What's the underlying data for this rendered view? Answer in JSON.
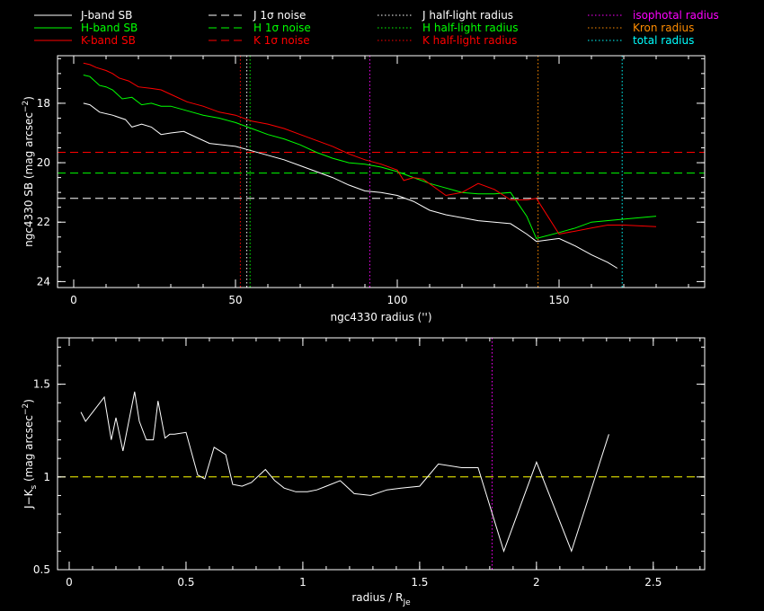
{
  "colors": {
    "J": "#ffffff",
    "H": "#00ff00",
    "K": "#ff0000",
    "iso": "#ff00ff",
    "kron": "#ff8c00",
    "total": "#00ffff",
    "ratio_line": "#ffffff",
    "ratio_ref": "#ffff00"
  },
  "legend": {
    "col1": [
      "J-band SB",
      "H-band SB",
      "K-band SB"
    ],
    "col2": [
      "J 1σ noise",
      "H 1σ noise",
      "K 1σ noise"
    ],
    "col3": [
      "J half-light radius",
      "H half-light radius",
      "K half-light radius"
    ],
    "col4": [
      "isophotal radius",
      "Kron radius",
      "total radius"
    ]
  },
  "chart_data": [
    {
      "type": "line",
      "xlabel": "ngc4330 radius ('')",
      "ylabel": "ngc4330 SB (mag arcsec",
      "ylabel_sup": "−2",
      "ylabel_close": ")",
      "xlim": [
        -5,
        195
      ],
      "ylim": [
        24.2,
        16.4
      ],
      "y_inverted": true,
      "xticks": [
        0,
        50,
        100,
        150
      ],
      "xtick_labels": [
        "0",
        "50",
        "100",
        "150"
      ],
      "yticks": [
        18,
        20,
        22,
        24
      ],
      "ytick_labels": [
        "18",
        "20",
        "22",
        "24"
      ],
      "series": [
        {
          "name": "J-band SB",
          "color": "J",
          "x": [
            3,
            5,
            8,
            12,
            16,
            18,
            21,
            24,
            27,
            30,
            34,
            38,
            42,
            46,
            50,
            55,
            60,
            65,
            70,
            75,
            80,
            85,
            90,
            95,
            100,
            105,
            110,
            115,
            120,
            125,
            130,
            135,
            140,
            143,
            150,
            155,
            160,
            165,
            168
          ],
          "y": [
            18.0,
            18.05,
            18.3,
            18.4,
            18.55,
            18.8,
            18.7,
            18.8,
            19.05,
            19.0,
            18.95,
            19.15,
            19.35,
            19.4,
            19.45,
            19.6,
            19.75,
            19.9,
            20.1,
            20.3,
            20.5,
            20.75,
            20.95,
            21.0,
            21.1,
            21.3,
            21.6,
            21.75,
            21.85,
            21.95,
            22.0,
            22.05,
            22.4,
            22.65,
            22.55,
            22.8,
            23.1,
            23.35,
            23.55
          ]
        },
        {
          "name": "H-band SB",
          "color": "H",
          "x": [
            3,
            5,
            8,
            10,
            12,
            15,
            18,
            21,
            24,
            27,
            30,
            35,
            40,
            45,
            50,
            55,
            60,
            65,
            70,
            75,
            80,
            85,
            90,
            95,
            100,
            105,
            110,
            115,
            120,
            125,
            130,
            135,
            140,
            143,
            150,
            155,
            160,
            170,
            180
          ],
          "y": [
            17.05,
            17.1,
            17.4,
            17.45,
            17.55,
            17.85,
            17.8,
            18.05,
            18.0,
            18.1,
            18.1,
            18.25,
            18.4,
            18.5,
            18.65,
            18.85,
            19.05,
            19.2,
            19.4,
            19.65,
            19.85,
            20.0,
            20.05,
            20.15,
            20.3,
            20.5,
            20.7,
            20.85,
            21.0,
            21.05,
            21.05,
            21.0,
            21.8,
            22.55,
            22.35,
            22.2,
            22.0,
            21.9,
            21.8
          ]
        },
        {
          "name": "K-band SB",
          "color": "K",
          "x": [
            3,
            5,
            7,
            10,
            12,
            14,
            17,
            20,
            24,
            27,
            30,
            35,
            40,
            45,
            50,
            55,
            60,
            65,
            70,
            75,
            80,
            85,
            90,
            95,
            100,
            102,
            105,
            108,
            115,
            120,
            125,
            130,
            135,
            140,
            143,
            150,
            155,
            160,
            165,
            170,
            180
          ],
          "y": [
            16.65,
            16.7,
            16.8,
            16.9,
            17.0,
            17.15,
            17.25,
            17.45,
            17.5,
            17.55,
            17.7,
            17.95,
            18.1,
            18.3,
            18.4,
            18.6,
            18.7,
            18.85,
            19.05,
            19.25,
            19.45,
            19.7,
            19.9,
            20.05,
            20.25,
            20.6,
            20.5,
            20.55,
            21.1,
            21.0,
            20.7,
            20.9,
            21.25,
            21.25,
            21.2,
            22.4,
            22.3,
            22.2,
            22.1,
            22.1,
            22.15
          ]
        }
      ],
      "hlines": [
        {
          "name": "J 1σ noise",
          "y": 21.2,
          "color": "J"
        },
        {
          "name": "H 1σ noise",
          "y": 20.35,
          "color": "H"
        },
        {
          "name": "K 1σ noise",
          "y": 19.65,
          "color": "K"
        }
      ],
      "vlines": [
        {
          "name": "K half-light radius",
          "x": 51.5,
          "color": "K"
        },
        {
          "name": "J half-light radius",
          "x": 53.5,
          "color": "J"
        },
        {
          "name": "H half-light radius",
          "x": 54.5,
          "color": "H"
        },
        {
          "name": "isophotal radius",
          "x": 91.5,
          "color": "iso"
        },
        {
          "name": "Kron radius",
          "x": 143.5,
          "color": "kron"
        },
        {
          "name": "total radius",
          "x": 169.5,
          "color": "total"
        }
      ]
    },
    {
      "type": "line",
      "xlabel": "radius / R",
      "xlabel_sub": "Je",
      "ylabel": "J−K",
      "ylabel_sub": "s",
      "ylabel_rest": " (mag arcsec",
      "ylabel_sup": "−2",
      "ylabel_close": ")",
      "xlim": [
        -0.05,
        2.72
      ],
      "ylim": [
        0.5,
        1.75
      ],
      "xticks": [
        0,
        0.5,
        1,
        1.5,
        2,
        2.5
      ],
      "xtick_labels": [
        "0",
        "0.5",
        "1",
        "1.5",
        "2",
        "2.5"
      ],
      "yticks": [
        0.5,
        1,
        1.5
      ],
      "ytick_labels": [
        "0.5",
        "1",
        "1.5"
      ],
      "series": [
        {
          "name": "J-K",
          "color": "ratio_line",
          "x": [
            0.05,
            0.07,
            0.15,
            0.18,
            0.2,
            0.23,
            0.28,
            0.3,
            0.33,
            0.36,
            0.38,
            0.41,
            0.43,
            0.45,
            0.5,
            0.55,
            0.58,
            0.62,
            0.67,
            0.7,
            0.74,
            0.78,
            0.84,
            0.88,
            0.92,
            0.97,
            1.02,
            1.06,
            1.1,
            1.16,
            1.22,
            1.29,
            1.36,
            1.42,
            1.5,
            1.58,
            1.68,
            1.75,
            1.86,
            2.0,
            2.15,
            2.31
          ],
          "y": [
            1.35,
            1.3,
            1.43,
            1.2,
            1.32,
            1.14,
            1.46,
            1.3,
            1.2,
            1.2,
            1.41,
            1.21,
            1.23,
            1.23,
            1.24,
            1.01,
            0.99,
            1.16,
            1.12,
            0.96,
            0.95,
            0.97,
            1.04,
            0.98,
            0.94,
            0.92,
            0.92,
            0.93,
            0.95,
            0.98,
            0.91,
            0.9,
            0.93,
            0.94,
            0.95,
            1.07,
            1.05,
            1.05,
            0.6,
            1.08,
            0.6,
            1.23
          ]
        }
      ],
      "hlines": [
        {
          "y": 1.0,
          "color": "ratio_ref"
        }
      ],
      "vlines": [
        {
          "x": 1.81,
          "color": "iso"
        }
      ]
    }
  ]
}
